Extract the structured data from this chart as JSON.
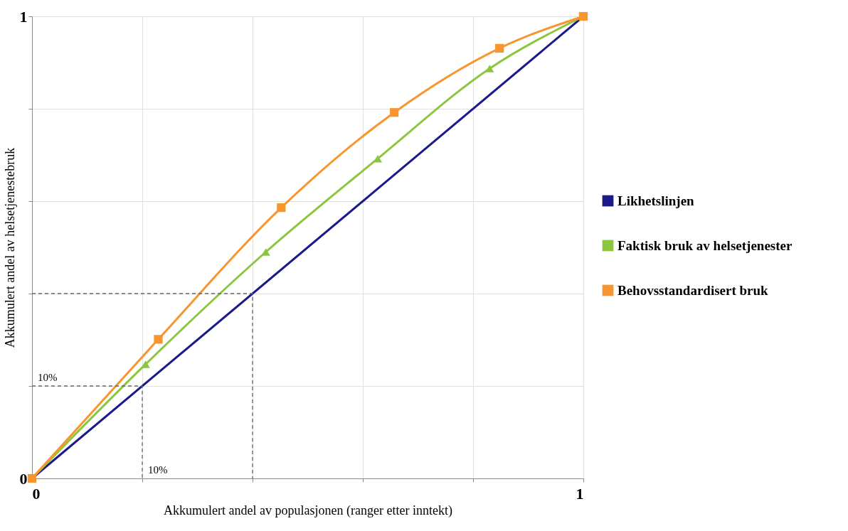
{
  "chart_data": {
    "type": "line",
    "xlabel": "Akkumulert andel av populasjonen (ranger etter inntekt)",
    "ylabel": "Akkumulert andel av helsetjenestebruk",
    "xlim": [
      0,
      1
    ],
    "ylim": [
      0,
      1
    ],
    "xticks": [
      0,
      {
        "value": 0.2,
        "label": null
      },
      {
        "value": 0.4,
        "label": null
      },
      {
        "value": 0.6,
        "label": null
      },
      {
        "value": 0.8,
        "label": null
      },
      1
    ],
    "yticks": [
      0,
      {
        "value": 0.2,
        "label": null
      },
      {
        "value": 0.4,
        "label": null
      },
      {
        "value": 0.6,
        "label": null
      },
      {
        "value": 0.8,
        "label": null
      },
      1
    ],
    "grid": true,
    "legend": "right",
    "series": [
      {
        "name": "Likhetslinjen",
        "color": "#1a1a8c",
        "x": [
          0,
          1
        ],
        "values": [
          0,
          1
        ],
        "marker": "none",
        "line_style": "solid"
      },
      {
        "name": "Faktisk bruk av helsetjenester",
        "color": "#8cc63f",
        "x": [
          0,
          0.206,
          0.424,
          0.627,
          0.83,
          1
        ],
        "values": [
          0,
          0.247,
          0.49,
          0.692,
          0.887,
          1
        ],
        "marker": "triangle",
        "line_style": "solid"
      },
      {
        "name": "Behovsstandardisert bruk",
        "color": "#f7962f",
        "x": [
          0,
          0.229,
          0.452,
          0.657,
          0.848,
          1
        ],
        "values": [
          0,
          0.301,
          0.586,
          0.792,
          0.931,
          1
        ],
        "marker": "square",
        "line_style": "solid"
      },
      {
        "color": "#666666",
        "x": [
          0,
          0.2,
          0.2
        ],
        "values": [
          0.2,
          0.2,
          0
        ],
        "marker": "none",
        "line_style": "dashed"
      },
      {
        "color": "#666666",
        "x": [
          0,
          0.4,
          0.4
        ],
        "values": [
          0.4,
          0.4,
          0
        ],
        "marker": "none",
        "line_style": "dashed"
      }
    ],
    "annotations": [
      {
        "text": "10%",
        "x": 0,
        "y": 0.2
      },
      {
        "text": "10%",
        "x": 0.2,
        "y": 0
      }
    ]
  }
}
